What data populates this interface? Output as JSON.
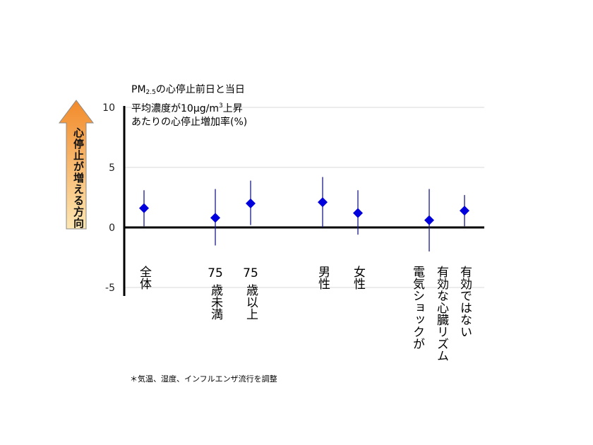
{
  "title": {
    "line1_main": "PM",
    "line1_sub": "2.5",
    "line1_rest": "の心停止前日と当日",
    "line2_pre": "平均濃度が10μg/m",
    "line2_sup": "3",
    "line2_post": "上昇",
    "line3": "あたりの心停止増加率(%)"
  },
  "arrow_label": "心停止が増える方向",
  "note": "＊気温、湿度、インフルエンザ流行を調整",
  "colors": {
    "marker": "#0000dd",
    "errorbar": "#1a1a8a",
    "arrow_top": "#f28a2a",
    "arrow_bottom": "#fde7b3",
    "grid": "#d8d8d8"
  },
  "chart_data": {
    "type": "scatter",
    "ylim": [
      -5,
      10
    ],
    "yticks": [
      10,
      5,
      0,
      -5
    ],
    "grid": true,
    "categories": [
      {
        "label_lines": [
          "全体"
        ],
        "value": 1.6,
        "low": 0.1,
        "high": 3.1
      },
      {
        "label_lines": [
          "75",
          "歳未満"
        ],
        "value": 0.8,
        "low": -1.5,
        "high": 3.2
      },
      {
        "label_lines": [
          "75",
          "歳以上"
        ],
        "value": 2.0,
        "low": 0.2,
        "high": 3.9
      },
      {
        "label_lines": [
          "男性"
        ],
        "value": 2.1,
        "low": 0.0,
        "high": 4.2
      },
      {
        "label_lines": [
          "女性"
        ],
        "value": 1.2,
        "low": -0.6,
        "high": 3.1
      },
      {
        "label_lines": [
          "有効な心臓リズム",
          "電気ショックが"
        ],
        "value": 0.6,
        "low": -2.0,
        "high": 3.2
      },
      {
        "label_lines": [
          "有効ではない"
        ],
        "value": 1.4,
        "low": 0.1,
        "high": 2.7
      }
    ]
  }
}
